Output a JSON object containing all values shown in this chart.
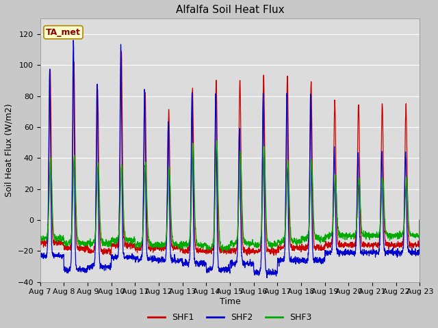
{
  "title": "Alfalfa Soil Heat Flux",
  "ylabel": "Soil Heat Flux (W/m2)",
  "xlabel": "Time",
  "ylim": [
    -40,
    130
  ],
  "yticks": [
    -40,
    -20,
    0,
    20,
    40,
    60,
    80,
    100,
    120
  ],
  "start_day": 7,
  "num_days": 16,
  "series": [
    "SHF1",
    "SHF2",
    "SHF3"
  ],
  "colors": [
    "#cc0000",
    "#0000cc",
    "#00aa00"
  ],
  "figure_bg": "#c8c8c8",
  "axes_bg": "#dcdcdc",
  "grid_color": "#ffffff",
  "title_fontsize": 11,
  "label_fontsize": 9,
  "tick_fontsize": 8,
  "legend_fontsize": 9,
  "ta_met_box_color": "#ffffcc",
  "ta_met_text_color": "#880000",
  "ta_met_border_color": "#aa8800",
  "peaks_shf1": [
    98,
    102,
    84,
    108,
    83,
    70,
    84,
    90,
    90,
    94,
    93,
    89,
    77,
    75,
    75,
    74
  ],
  "peaks_shf2": [
    99,
    117,
    90,
    113,
    84,
    64,
    83,
    83,
    60,
    81,
    82,
    82,
    46,
    44,
    44,
    44
  ],
  "peaks_shf3": [
    40,
    41,
    36,
    36,
    36,
    33,
    50,
    50,
    43,
    48,
    38,
    37,
    29,
    27,
    27,
    26
  ],
  "troughs_shf1": [
    -15,
    -18,
    -20,
    -16,
    -18,
    -18,
    -20,
    -20,
    -20,
    -20,
    -18,
    -18,
    -16,
    -16,
    -16,
    -16
  ],
  "troughs_shf2": [
    -23,
    -32,
    -30,
    -24,
    -25,
    -26,
    -28,
    -32,
    -28,
    -34,
    -26,
    -26,
    -21,
    -21,
    -21,
    -21
  ],
  "troughs_shf3": [
    -12,
    -15,
    -15,
    -13,
    -16,
    -16,
    -16,
    -18,
    -15,
    -16,
    -14,
    -12,
    -10,
    -10,
    -10,
    -10
  ]
}
